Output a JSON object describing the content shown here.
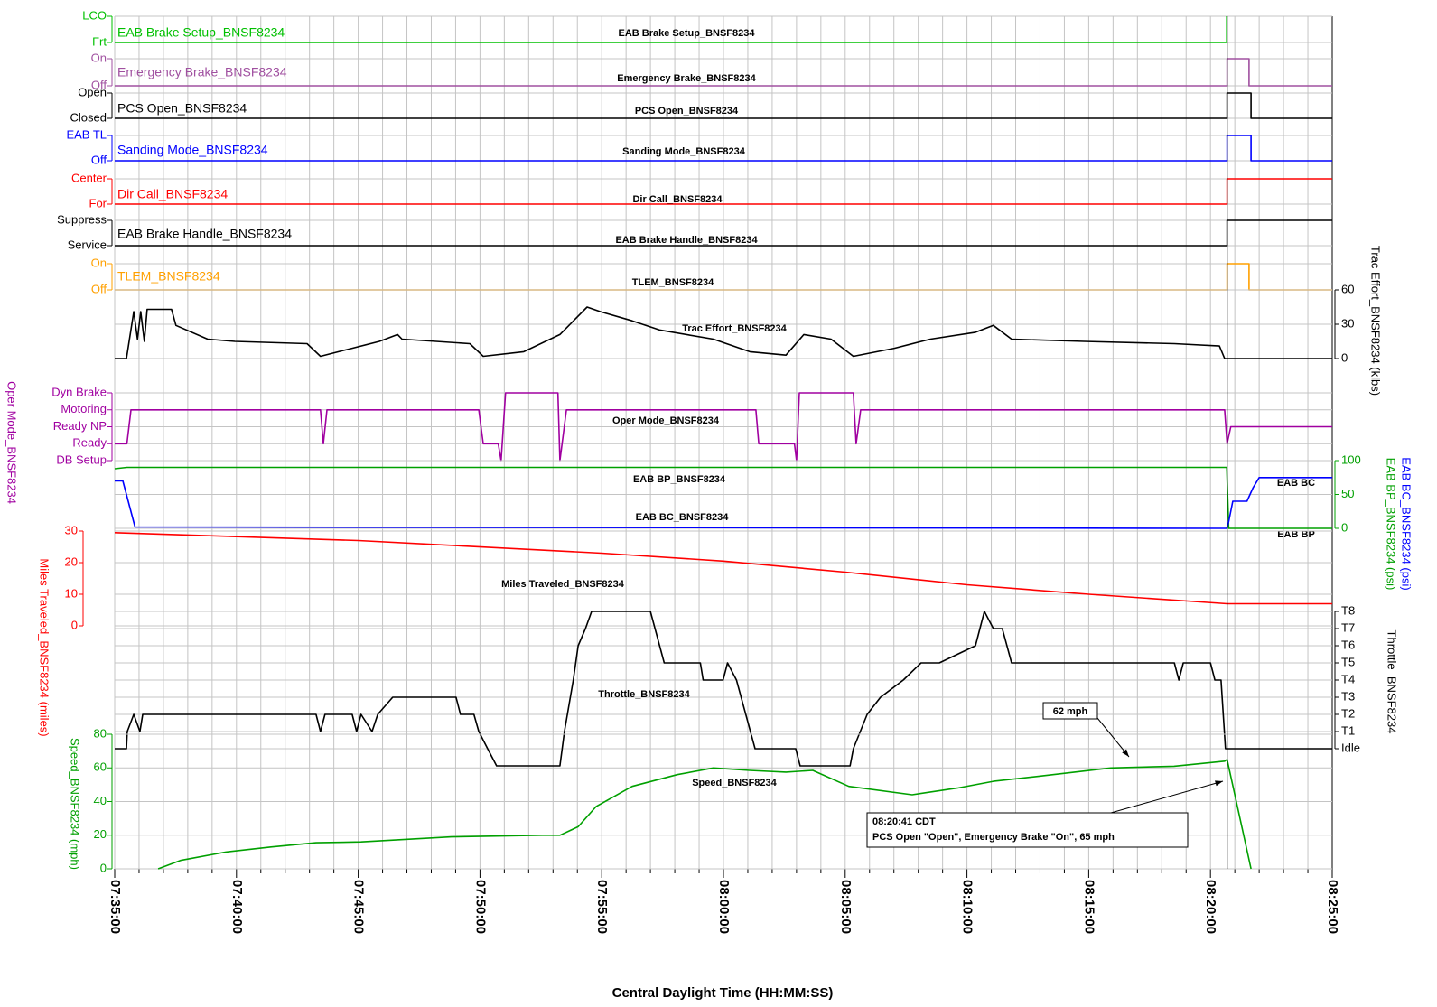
{
  "x_axis": {
    "label": "Central Daylight Time (HH:MM:SS)",
    "xlim": [
      "07:35:00",
      "08:25:00"
    ],
    "xticks": [
      "07:35:00",
      "07:40:00",
      "07:45:00",
      "07:50:00",
      "07:55:00",
      "08:00:00",
      "08:05:00",
      "08:10:00",
      "08:15:00",
      "08:20:00",
      "08:25:00"
    ],
    "minor_xticks": [
      "07:36:00",
      "07:37:00",
      "07:38:00",
      "07:39:00",
      "07:41:00",
      "07:42:00",
      "07:43:00",
      "07:44:00",
      "07:46:00",
      "07:47:00",
      "07:48:00",
      "07:49:00",
      "07:51:00",
      "07:52:00",
      "07:53:00",
      "07:54:00",
      "07:56:00",
      "07:57:00",
      "07:58:00",
      "07:59:00",
      "08:01:00",
      "08:02:00",
      "08:03:00",
      "08:04:00",
      "08:06:00",
      "08:07:00",
      "08:08:00",
      "08:09:00",
      "08:11:00",
      "08:12:00",
      "08:13:00",
      "08:14:00",
      "08:16:00",
      "08:17:00",
      "08:18:00",
      "08:19:00",
      "08:21:00",
      "08:22:00",
      "08:23:00",
      "08:24:00"
    ],
    "cursor": "08:20:41"
  },
  "chart_data": [
    {
      "type": "line",
      "title": "EAB Brake Setup_BNSF8234",
      "ylim": [
        0,
        1
      ],
      "yticks": [
        {
          "value": 0,
          "label": "Frt"
        },
        {
          "value": 1,
          "label": "LCO"
        }
      ],
      "series": [
        {
          "name": "EAB Brake Setup_BNSF8234",
          "color": "#00c000",
          "x": [
            "07:35:00",
            "08:20:40",
            "08:20:40"
          ],
          "values": [
            0,
            0,
            1
          ]
        }
      ]
    },
    {
      "type": "line",
      "title": "Emergency Brake_BNSF8234",
      "ylim": [
        0,
        1
      ],
      "yticks": [
        {
          "value": 0,
          "label": "Off"
        },
        {
          "value": 1,
          "label": "On"
        }
      ],
      "series": [
        {
          "name": "Emergency Brake_BNSF8234",
          "color": "#a050a0",
          "x": [
            "07:35:00",
            "08:20:41",
            "08:20:41",
            "08:21:35",
            "08:21:35",
            "08:25:00"
          ],
          "values": [
            0,
            0,
            1,
            1,
            0,
            0
          ]
        }
      ]
    },
    {
      "type": "line",
      "title": "PCS Open_BNSF8234",
      "ylim": [
        0,
        1
      ],
      "yticks": [
        {
          "value": 0,
          "label": "Closed"
        },
        {
          "value": 1,
          "label": "Open"
        }
      ],
      "series": [
        {
          "name": "PCS Open_BNSF8234",
          "color": "#000000",
          "x": [
            "07:35:00",
            "08:20:41",
            "08:20:41",
            "08:21:40",
            "08:21:40",
            "08:25:00"
          ],
          "values": [
            0,
            0,
            1,
            1,
            0,
            0
          ]
        }
      ]
    },
    {
      "type": "line",
      "title": "Sanding Mode_BNSF8234",
      "ylim": [
        0,
        1
      ],
      "yticks": [
        {
          "value": 0,
          "label": "Off"
        },
        {
          "value": 1,
          "label": "EAB TL"
        }
      ],
      "series": [
        {
          "name": "Sanding Mode_BNSF8234",
          "color": "#0000ff",
          "x": [
            "07:35:00",
            "08:20:41",
            "08:20:41",
            "08:21:40",
            "08:21:40",
            "08:25:00"
          ],
          "values": [
            0,
            0,
            1,
            1,
            0,
            0
          ]
        }
      ]
    },
    {
      "type": "line",
      "title": "Dir Call_BNSF8234",
      "ylim": [
        0,
        1
      ],
      "yticks": [
        {
          "value": 0,
          "label": "For"
        },
        {
          "value": 1,
          "label": "Center"
        }
      ],
      "series": [
        {
          "name": "Dir Call_BNSF8234",
          "color": "#ff0000",
          "x": [
            "07:35:00",
            "08:20:41",
            "08:20:41",
            "08:25:00"
          ],
          "values": [
            0,
            0,
            1,
            1
          ]
        }
      ]
    },
    {
      "type": "line",
      "title": "EAB Brake Handle_BNSF8234",
      "ylim": [
        0,
        1
      ],
      "yticks": [
        {
          "value": 0,
          "label": "Service"
        },
        {
          "value": 1,
          "label": "Suppress"
        }
      ],
      "series": [
        {
          "name": "EAB Brake Handle_BNSF8234",
          "color": "#000000",
          "x": [
            "07:35:00",
            "08:20:41",
            "08:20:41",
            "08:25:00"
          ],
          "values": [
            0,
            0,
            1,
            1
          ]
        }
      ]
    },
    {
      "type": "line",
      "title": "TLEM_BNSF8234",
      "ylim": [
        0,
        1
      ],
      "yticks": [
        {
          "value": 0,
          "label": "Off"
        },
        {
          "value": 1,
          "label": "On"
        }
      ],
      "series": [
        {
          "name": "TLEM_BNSF8234",
          "color": "#ffa000",
          "x": [
            "07:35:00",
            "08:20:41",
            "08:20:41",
            "08:21:35",
            "08:21:35",
            "08:25:00"
          ],
          "values": [
            0,
            0,
            1,
            1,
            0,
            0
          ]
        }
      ]
    },
    {
      "type": "line",
      "y_label": "Trac Effort_BNSF8234 (klbs)",
      "ylim": [
        0,
        60
      ],
      "yticks": [
        0,
        30,
        60
      ],
      "series": [
        {
          "name": "Trac Effort_BNSF8234",
          "color": "#000000",
          "x": [
            "07:35:00",
            "07:35:29",
            "07:35:47",
            "07:35:56",
            "07:36:04",
            "07:36:13",
            "07:36:20",
            "07:37:20",
            "07:37:31",
            "07:38:49",
            "07:39:56",
            "07:42:54",
            "07:43:27",
            "07:44:45",
            "07:45:52",
            "07:46:37",
            "07:46:48",
            "07:49:35",
            "07:50:08",
            "07:51:48",
            "07:53:17",
            "07:54:24",
            "07:54:57",
            "07:56:15",
            "07:57:22",
            "07:59:35",
            "08:01:05",
            "08:02:34",
            "08:03:18",
            "08:04:25",
            "08:05:20",
            "08:07:01",
            "08:08:30",
            "08:10:21",
            "08:11:05",
            "08:11:50",
            "08:14:48",
            "08:18:31",
            "08:20:22",
            "08:20:35",
            "08:25:00"
          ],
          "values": [
            0,
            0,
            41,
            17,
            41,
            15,
            43,
            43,
            29,
            17,
            15,
            13,
            2,
            9,
            15,
            21,
            17,
            13,
            2,
            6,
            21,
            45,
            41,
            33,
            25,
            17,
            6,
            3,
            21,
            17,
            2,
            9,
            17,
            23,
            29,
            17,
            15,
            13,
            11,
            0,
            0
          ]
        }
      ]
    },
    {
      "type": "line",
      "y_label": "Oper Mode_BNSF8234",
      "ylim": [
        0,
        4
      ],
      "yticks": [
        {
          "value": 0,
          "label": "DB Setup"
        },
        {
          "value": 1,
          "label": "Ready"
        },
        {
          "value": 2,
          "label": "Ready NP"
        },
        {
          "value": 3,
          "label": "Motoring"
        },
        {
          "value": 4,
          "label": "Dyn Brake"
        }
      ],
      "series": [
        {
          "name": "Oper Mode_BNSF8234",
          "color": "#a000a0",
          "x": [
            "07:35:00",
            "07:35:30",
            "07:35:40",
            "07:43:27",
            "07:43:34",
            "07:43:43",
            "07:49:57",
            "07:50:08",
            "07:50:45",
            "07:50:52",
            "07:51:03",
            "07:53:12",
            "07:53:17",
            "07:53:33",
            "08:01:20",
            "08:01:27",
            "08:02:55",
            "08:03:00",
            "08:03:07",
            "08:05:20",
            "08:05:27",
            "08:05:38",
            "08:20:35",
            "08:20:41",
            "08:20:50",
            "08:25:00"
          ],
          "values": [
            1,
            1,
            3,
            3,
            1,
            3,
            3,
            1,
            1,
            0,
            4,
            4,
            0,
            3,
            3,
            1,
            1,
            0,
            4,
            4,
            1,
            3,
            3,
            1,
            2,
            2
          ]
        }
      ]
    },
    {
      "type": "line",
      "ylim": [
        0,
        100
      ],
      "yticks": [
        0,
        50,
        100
      ],
      "series": [
        {
          "name": "EAB BP_BNSF8234",
          "end_label": "EAB BP",
          "y_label": "EAB BP_BNSF8234 (psi)",
          "color": "#00a000",
          "x": [
            "07:35:00",
            "07:35:30",
            "08:20:40",
            "08:20:45",
            "08:25:00"
          ],
          "values": [
            88,
            90,
            90,
            0,
            0
          ]
        },
        {
          "name": "EAB BC_BNSF8234",
          "end_label": "EAB BC",
          "y_label": "EAB BC_BNSF8234 (psi)",
          "color": "#0000ff",
          "x": [
            "07:35:00",
            "07:35:20",
            "07:35:50",
            "08:20:40",
            "08:20:45",
            "08:20:55",
            "08:21:30",
            "08:21:45",
            "08:22:00",
            "08:25:00"
          ],
          "values": [
            70,
            70,
            2,
            0,
            10,
            40,
            40,
            60,
            75,
            75
          ]
        }
      ]
    },
    {
      "type": "line",
      "y_label": "Miles Traveled_BNSF8234 (miles)",
      "ylim": [
        0,
        30
      ],
      "yticks": [
        0,
        10,
        20,
        30
      ],
      "series": [
        {
          "name": "Miles Traveled_BNSF8234",
          "color": "#ff0000",
          "x": [
            "07:35:00",
            "07:45:00",
            "07:55:00",
            "08:00:00",
            "08:05:00",
            "08:10:00",
            "08:15:00",
            "08:20:41",
            "08:25:00"
          ],
          "values": [
            29.5,
            27,
            23,
            20.5,
            17,
            13,
            10,
            7,
            7
          ]
        }
      ]
    },
    {
      "type": "line",
      "y_label": "Throttle_BNSF8234",
      "ylim": [
        0,
        8
      ],
      "yticks": [
        {
          "value": 0,
          "label": "Idle"
        },
        {
          "value": 1,
          "label": "T1"
        },
        {
          "value": 2,
          "label": "T2"
        },
        {
          "value": 3,
          "label": "T3"
        },
        {
          "value": 4,
          "label": "T4"
        },
        {
          "value": 5,
          "label": "T5"
        },
        {
          "value": 6,
          "label": "T6"
        },
        {
          "value": 7,
          "label": "T7"
        },
        {
          "value": 8,
          "label": "T8"
        }
      ],
      "series": [
        {
          "name": "Throttle_BNSF8234",
          "color": "#000000",
          "x": [
            "07:35:00",
            "07:35:29",
            "07:35:31",
            "07:35:47",
            "07:36:02",
            "07:36:09",
            "07:43:16",
            "07:43:27",
            "07:43:38",
            "07:44:45",
            "07:44:56",
            "07:45:07",
            "07:45:34",
            "07:45:48",
            "07:46:25",
            "07:49:01",
            "07:49:12",
            "07:49:45",
            "07:49:57",
            "07:50:19",
            "07:50:41",
            "07:53:17",
            "07:53:28",
            "07:53:50",
            "07:54:02",
            "07:54:20",
            "07:54:35",
            "07:57:00",
            "07:57:34",
            "07:59:03",
            "07:59:10",
            "07:59:59",
            "08:00:10",
            "08:00:32",
            "08:00:55",
            "08:01:18",
            "08:02:58",
            "08:03:09",
            "08:05:12",
            "08:05:20",
            "08:05:54",
            "08:06:27",
            "08:07:23",
            "08:08:07",
            "08:08:52",
            "08:10:21",
            "08:10:43",
            "08:11:05",
            "08:11:27",
            "08:11:50",
            "08:18:31",
            "08:18:42",
            "08:18:53",
            "08:20:00",
            "08:20:11",
            "08:20:26",
            "08:20:37",
            "08:25:00"
          ],
          "values": [
            0,
            0,
            1,
            2,
            1,
            2,
            2,
            1,
            2,
            2,
            1,
            2,
            1,
            2,
            3,
            3,
            2,
            2,
            1,
            0,
            -1,
            -1,
            1,
            4,
            6,
            7,
            8,
            8,
            5,
            5,
            4,
            4,
            5,
            4,
            2,
            0,
            0,
            -1,
            -1,
            0,
            2,
            3,
            4,
            5,
            5,
            6,
            8,
            7,
            7,
            5,
            5,
            4,
            5,
            5,
            4,
            4,
            0,
            0
          ]
        }
      ]
    },
    {
      "type": "line",
      "y_label": "Speed_BNSF8234 (mph)",
      "ylim": [
        0,
        80
      ],
      "yticks": [
        0,
        20,
        40,
        60,
        80
      ],
      "series": [
        {
          "name": "Speed_BNSF8234",
          "color": "#00a000",
          "x": [
            "07:36:47",
            "07:37:42",
            "07:39:34",
            "07:41:25",
            "07:43:16",
            "07:45:07",
            "07:48:50",
            "07:52:33",
            "07:53:17",
            "07:54:02",
            "07:54:46",
            "07:56:15",
            "07:58:06",
            "07:59:35",
            "08:01:04",
            "08:02:34",
            "08:03:40",
            "08:05:09",
            "08:07:45",
            "08:09:36",
            "08:11:05",
            "08:12:56",
            "08:15:54",
            "08:18:30",
            "08:20:35",
            "08:20:41",
            "08:21:40"
          ],
          "values": [
            0,
            5,
            10,
            13,
            15.5,
            16,
            19,
            20,
            20,
            25,
            37,
            49,
            56,
            60,
            58.5,
            57.5,
            58.5,
            49,
            44,
            48,
            52,
            55,
            60,
            61,
            64,
            65,
            0
          ]
        }
      ],
      "annotations": [
        {
          "lines": [
            "62 mph"
          ]
        },
        {
          "lines": [
            "08:20:41 CDT",
            "PCS Open \"Open\", Emergency Brake \"On\", 65 mph"
          ]
        }
      ]
    }
  ]
}
